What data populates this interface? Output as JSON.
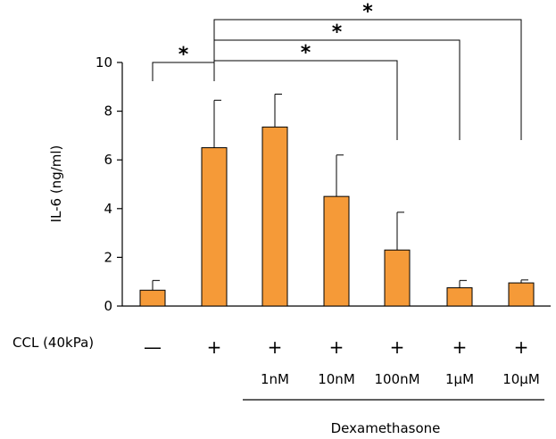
{
  "chart_data": {
    "type": "bar",
    "ylabel": "IL-6 (ng/ml)",
    "ylim": [
      0,
      10
    ],
    "yticks": [
      0,
      2,
      4,
      6,
      8,
      10
    ],
    "bar_color": "#f59a38",
    "values": [
      0.65,
      6.5,
      7.35,
      4.5,
      2.3,
      0.75,
      0.95
    ],
    "errors": [
      0.4,
      1.95,
      1.35,
      1.7,
      1.55,
      0.3,
      0.12
    ],
    "ccl_label": "CCL (40kPa)",
    "ccl_row": [
      "—",
      "+",
      "+",
      "+",
      "+",
      "+",
      "+"
    ],
    "dose_row": [
      "",
      "",
      "1nM",
      "10nM",
      "100nM",
      "1µM",
      "10µM"
    ],
    "group_label": "Dexamethasone",
    "significance": [
      {
        "from": 0,
        "to": 1,
        "label": "*"
      },
      {
        "from": 1,
        "to": 4,
        "label": "*"
      },
      {
        "from": 1,
        "to": 5,
        "label": "*"
      },
      {
        "from": 1,
        "to": 6,
        "label": "*"
      }
    ]
  }
}
